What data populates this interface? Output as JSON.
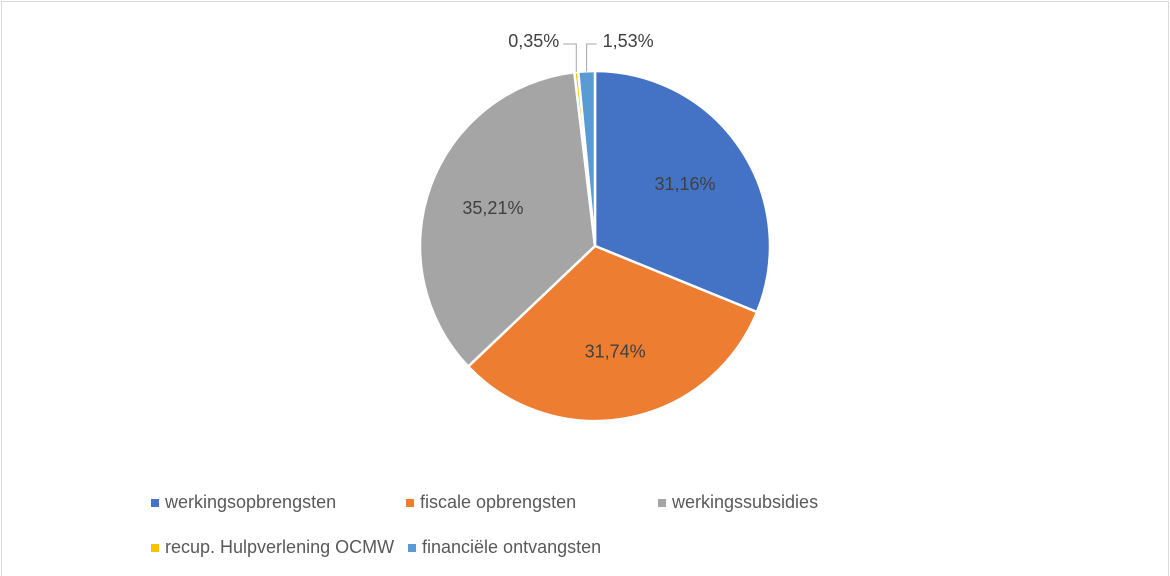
{
  "chart_data": {
    "type": "pie",
    "categories": [
      "werkingsopbrengsten",
      "fiscale opbrengsten",
      "werkingssubsidies",
      "recup. Hulpverlening OCMW",
      "financiële ontvangsten"
    ],
    "values": [
      31.16,
      31.74,
      35.21,
      0.35,
      1.53
    ],
    "value_labels": [
      "31,16%",
      "31,74%",
      "35,21%",
      "0,35%",
      "1,53%"
    ],
    "colors": [
      "#4472c4",
      "#ed7d31",
      "#a5a5a5",
      "#ffc000",
      "#5b9bd5"
    ],
    "legend": "bottom"
  }
}
